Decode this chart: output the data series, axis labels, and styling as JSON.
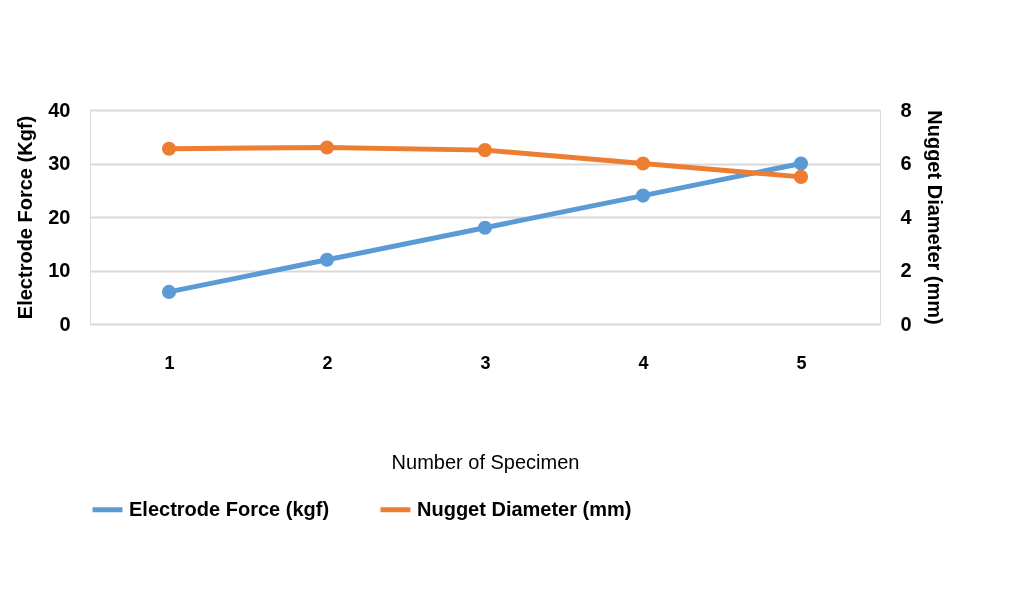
{
  "chart_data": {
    "type": "line",
    "xlabel": "Number of Specimen",
    "ylabel": "Electrode Force (Kgf)",
    "y2label": "Nugget Diameter (mm)",
    "categories": [
      "1",
      "2",
      "3",
      "4",
      "5"
    ],
    "series": [
      {
        "name": "Electrode Force (kgf)",
        "color": "#5b9bd5",
        "values": [
          6,
          12,
          18,
          24,
          30
        ]
      },
      {
        "name": "Nugget Diameter (mm)",
        "color": "#ed7d31",
        "axis": "y2",
        "values": [
          6.55,
          6.6,
          6.5,
          6.0,
          5.5
        ]
      }
    ],
    "ylim": [
      0,
      40
    ],
    "yticks": [
      0,
      10,
      20,
      30,
      40
    ],
    "y2lim": [
      0,
      8
    ],
    "y2ticks": [
      0,
      2,
      4,
      6,
      8
    ],
    "grid": "y",
    "legend": "bottom",
    "marker": "circle",
    "line_style": "solid"
  }
}
